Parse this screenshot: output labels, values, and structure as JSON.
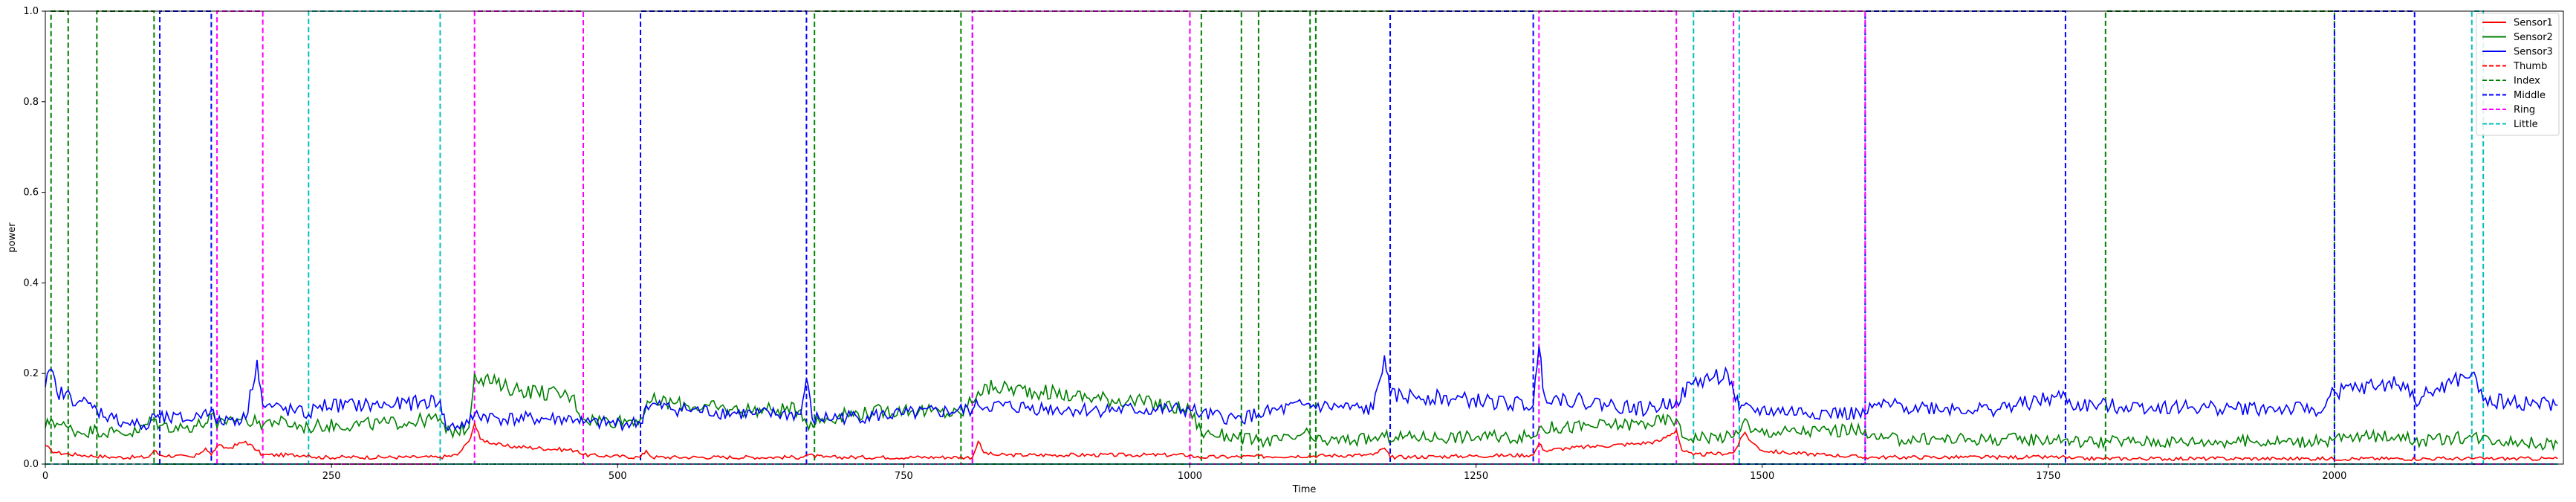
{
  "chart_data": {
    "type": "line",
    "title": "",
    "xlabel": "Time",
    "ylabel": "power",
    "xlim": [
      0,
      2200
    ],
    "ylim": [
      0.0,
      1.0
    ],
    "xticks": [
      0,
      250,
      500,
      750,
      1000,
      1250,
      1500,
      1750,
      2000
    ],
    "yticks": [
      0.0,
      0.2,
      0.4,
      0.6,
      0.8,
      1.0
    ],
    "xtick_labels": [
      "0",
      "250",
      "500",
      "750",
      "1000",
      "1250",
      "1500",
      "1750",
      "2000"
    ],
    "ytick_labels": [
      "0.0",
      "0.2",
      "0.4",
      "0.6",
      "0.8",
      "1.0"
    ],
    "grid": false,
    "legend_position": "top-right",
    "sensor_series": [
      {
        "name": "Sensor1",
        "color": "#ff0000",
        "points": [
          [
            0,
            0.04
          ],
          [
            5,
            0.03
          ],
          [
            10,
            0.025
          ],
          [
            30,
            0.02
          ],
          [
            60,
            0.015
          ],
          [
            90,
            0.015
          ],
          [
            95,
            0.03
          ],
          [
            100,
            0.02
          ],
          [
            130,
            0.015
          ],
          [
            140,
            0.035
          ],
          [
            145,
            0.02
          ],
          [
            150,
            0.04
          ],
          [
            160,
            0.035
          ],
          [
            175,
            0.05
          ],
          [
            185,
            0.03
          ],
          [
            190,
            0.02
          ],
          [
            230,
            0.02
          ],
          [
            235,
            0.015
          ],
          [
            345,
            0.015
          ],
          [
            360,
            0.02
          ],
          [
            370,
            0.05
          ],
          [
            375,
            0.09
          ],
          [
            380,
            0.055
          ],
          [
            400,
            0.04
          ],
          [
            465,
            0.03
          ],
          [
            470,
            0.02
          ],
          [
            520,
            0.015
          ],
          [
            525,
            0.03
          ],
          [
            530,
            0.015
          ],
          [
            660,
            0.015
          ],
          [
            665,
            0.02
          ],
          [
            680,
            0.015
          ],
          [
            810,
            0.015
          ],
          [
            815,
            0.05
          ],
          [
            820,
            0.025
          ],
          [
            830,
            0.02
          ],
          [
            1000,
            0.02
          ],
          [
            1005,
            0.015
          ],
          [
            1160,
            0.02
          ],
          [
            1170,
            0.035
          ],
          [
            1175,
            0.015
          ],
          [
            1300,
            0.02
          ],
          [
            1305,
            0.045
          ],
          [
            1310,
            0.03
          ],
          [
            1330,
            0.035
          ],
          [
            1360,
            0.04
          ],
          [
            1390,
            0.045
          ],
          [
            1410,
            0.05
          ],
          [
            1425,
            0.075
          ],
          [
            1430,
            0.03
          ],
          [
            1440,
            0.02
          ],
          [
            1475,
            0.025
          ],
          [
            1485,
            0.07
          ],
          [
            1490,
            0.05
          ],
          [
            1500,
            0.03
          ],
          [
            1520,
            0.025
          ],
          [
            1560,
            0.02
          ],
          [
            1590,
            0.015
          ],
          [
            1600,
            0.015
          ],
          [
            1765,
            0.015
          ],
          [
            1770,
            0.012
          ],
          [
            2195,
            0.012
          ]
        ]
      },
      {
        "name": "Sensor2",
        "color": "#008000",
        "points": [
          [
            0,
            0.08
          ],
          [
            5,
            0.1
          ],
          [
            10,
            0.09
          ],
          [
            20,
            0.08
          ],
          [
            30,
            0.07
          ],
          [
            45,
            0.075
          ],
          [
            60,
            0.07
          ],
          [
            80,
            0.07
          ],
          [
            95,
            0.1
          ],
          [
            100,
            0.085
          ],
          [
            120,
            0.08
          ],
          [
            140,
            0.09
          ],
          [
            145,
            0.11
          ],
          [
            150,
            0.08
          ],
          [
            160,
            0.1
          ],
          [
            175,
            0.1
          ],
          [
            185,
            0.09
          ],
          [
            200,
            0.095
          ],
          [
            230,
            0.08
          ],
          [
            240,
            0.085
          ],
          [
            300,
            0.09
          ],
          [
            345,
            0.1
          ],
          [
            350,
            0.07
          ],
          [
            370,
            0.08
          ],
          [
            375,
            0.2
          ],
          [
            400,
            0.17
          ],
          [
            430,
            0.16
          ],
          [
            460,
            0.15
          ],
          [
            470,
            0.1
          ],
          [
            500,
            0.095
          ],
          [
            520,
            0.1
          ],
          [
            530,
            0.14
          ],
          [
            560,
            0.13
          ],
          [
            600,
            0.12
          ],
          [
            640,
            0.12
          ],
          [
            660,
            0.12
          ],
          [
            665,
            0.09
          ],
          [
            700,
            0.11
          ],
          [
            750,
            0.12
          ],
          [
            800,
            0.11
          ],
          [
            815,
            0.16
          ],
          [
            830,
            0.17
          ],
          [
            870,
            0.16
          ],
          [
            900,
            0.15
          ],
          [
            950,
            0.14
          ],
          [
            1000,
            0.12
          ],
          [
            1010,
            0.07
          ],
          [
            1040,
            0.06
          ],
          [
            1060,
            0.05
          ],
          [
            1090,
            0.055
          ],
          [
            1100,
            0.07
          ],
          [
            1110,
            0.05
          ],
          [
            1160,
            0.055
          ],
          [
            1170,
            0.06
          ],
          [
            1180,
            0.06
          ],
          [
            1300,
            0.06
          ],
          [
            1305,
            0.08
          ],
          [
            1320,
            0.08
          ],
          [
            1400,
            0.09
          ],
          [
            1425,
            0.1
          ],
          [
            1430,
            0.06
          ],
          [
            1475,
            0.06
          ],
          [
            1485,
            0.1
          ],
          [
            1490,
            0.07
          ],
          [
            1590,
            0.075
          ],
          [
            1600,
            0.055
          ],
          [
            1765,
            0.055
          ],
          [
            1770,
            0.05
          ],
          [
            1900,
            0.05
          ],
          [
            1990,
            0.05
          ],
          [
            2000,
            0.055
          ],
          [
            2060,
            0.065
          ],
          [
            2070,
            0.05
          ],
          [
            2120,
            0.06
          ],
          [
            2180,
            0.045
          ],
          [
            2195,
            0.045
          ]
        ]
      },
      {
        "name": "Sensor3",
        "color": "#0000ff",
        "points": [
          [
            0,
            0.17
          ],
          [
            5,
            0.21
          ],
          [
            10,
            0.16
          ],
          [
            30,
            0.14
          ],
          [
            45,
            0.12
          ],
          [
            60,
            0.1
          ],
          [
            90,
            0.08
          ],
          [
            95,
            0.11
          ],
          [
            100,
            0.1
          ],
          [
            130,
            0.1
          ],
          [
            140,
            0.12
          ],
          [
            145,
            0.12
          ],
          [
            150,
            0.09
          ],
          [
            160,
            0.1
          ],
          [
            175,
            0.1
          ],
          [
            185,
            0.23
          ],
          [
            190,
            0.13
          ],
          [
            230,
            0.11
          ],
          [
            240,
            0.13
          ],
          [
            300,
            0.13
          ],
          [
            345,
            0.14
          ],
          [
            350,
            0.08
          ],
          [
            370,
            0.09
          ],
          [
            375,
            0.11
          ],
          [
            400,
            0.1
          ],
          [
            465,
            0.1
          ],
          [
            470,
            0.09
          ],
          [
            520,
            0.09
          ],
          [
            525,
            0.13
          ],
          [
            560,
            0.12
          ],
          [
            620,
            0.11
          ],
          [
            660,
            0.11
          ],
          [
            665,
            0.19
          ],
          [
            670,
            0.1
          ],
          [
            750,
            0.11
          ],
          [
            810,
            0.12
          ],
          [
            815,
            0.13
          ],
          [
            900,
            0.12
          ],
          [
            1000,
            0.12
          ],
          [
            1010,
            0.11
          ],
          [
            1040,
            0.1
          ],
          [
            1060,
            0.11
          ],
          [
            1100,
            0.13
          ],
          [
            1160,
            0.12
          ],
          [
            1170,
            0.24
          ],
          [
            1175,
            0.15
          ],
          [
            1200,
            0.15
          ],
          [
            1300,
            0.13
          ],
          [
            1305,
            0.26
          ],
          [
            1310,
            0.15
          ],
          [
            1400,
            0.12
          ],
          [
            1425,
            0.14
          ],
          [
            1440,
            0.18
          ],
          [
            1470,
            0.2
          ],
          [
            1475,
            0.16
          ],
          [
            1480,
            0.12
          ],
          [
            1590,
            0.11
          ],
          [
            1600,
            0.13
          ],
          [
            1700,
            0.12
          ],
          [
            1765,
            0.15
          ],
          [
            1770,
            0.13
          ],
          [
            1990,
            0.12
          ],
          [
            2000,
            0.16
          ],
          [
            2060,
            0.18
          ],
          [
            2070,
            0.14
          ],
          [
            2120,
            0.2
          ],
          [
            2130,
            0.14
          ],
          [
            2195,
            0.13
          ]
        ]
      }
    ],
    "finger_series": [
      {
        "name": "Thumb",
        "color": "#ff0000",
        "intervals": []
      },
      {
        "name": "Index",
        "color": "#008000",
        "intervals": [
          [
            5,
            20
          ],
          [
            45,
            95
          ],
          [
            672,
            800
          ],
          [
            1010,
            1045
          ],
          [
            1060,
            1105
          ],
          [
            1110,
            1175
          ],
          [
            1800,
            2000
          ]
        ]
      },
      {
        "name": "Middle",
        "color": "#0000ff",
        "intervals": [
          [
            100,
            145
          ],
          [
            520,
            665
          ],
          [
            810,
            1000
          ],
          [
            1175,
            1300
          ],
          [
            1590,
            1765
          ],
          [
            2000,
            2070
          ]
        ]
      },
      {
        "name": "Ring",
        "color": "#ff00ff",
        "intervals": [
          [
            150,
            190
          ],
          [
            375,
            470
          ],
          [
            810,
            1000
          ],
          [
            1305,
            1425
          ],
          [
            1475,
            1590
          ]
        ]
      },
      {
        "name": "Little",
        "color": "#00bfbf",
        "intervals": [
          [
            230,
            345
          ],
          [
            1440,
            1480
          ],
          [
            2120,
            2130
          ]
        ]
      }
    ],
    "legend": {
      "entries": [
        {
          "label": "Sensor1",
          "color": "#ff0000",
          "dashed": false
        },
        {
          "label": "Sensor2",
          "color": "#008000",
          "dashed": false
        },
        {
          "label": "Sensor3",
          "color": "#0000ff",
          "dashed": false
        },
        {
          "label": "Thumb",
          "color": "#ff0000",
          "dashed": true
        },
        {
          "label": "Index",
          "color": "#008000",
          "dashed": true
        },
        {
          "label": "Middle",
          "color": "#0000ff",
          "dashed": true
        },
        {
          "label": "Ring",
          "color": "#ff00ff",
          "dashed": true
        },
        {
          "label": "Little",
          "color": "#00bfbf",
          "dashed": true
        }
      ]
    }
  }
}
